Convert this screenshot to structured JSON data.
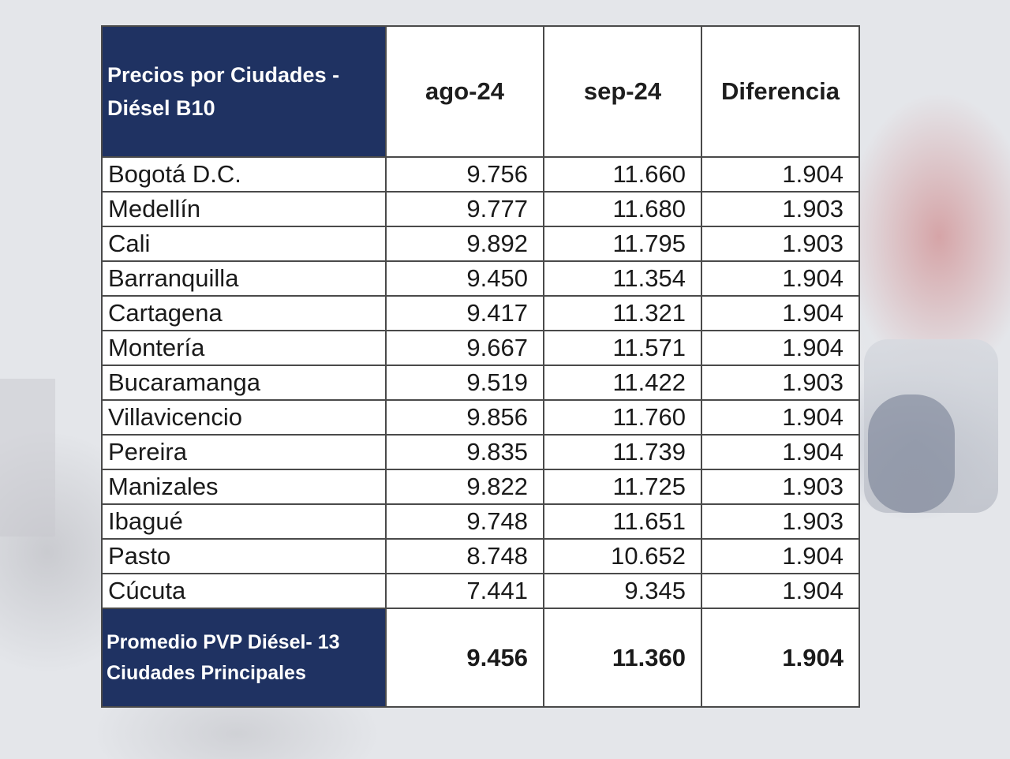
{
  "chart_data": {
    "type": "table",
    "header": {
      "label": "Precios por Ciudades - Diésel B10",
      "columns": [
        "ago-24",
        "sep-24",
        "Diferencia"
      ]
    },
    "rows": [
      {
        "city": "Bogotá D.C.",
        "ago": "9.756",
        "sep": "11.660",
        "diff": "1.904"
      },
      {
        "city": "Medellín",
        "ago": "9.777",
        "sep": "11.680",
        "diff": "1.903"
      },
      {
        "city": "Cali",
        "ago": "9.892",
        "sep": "11.795",
        "diff": "1.903"
      },
      {
        "city": "Barranquilla",
        "ago": "9.450",
        "sep": "11.354",
        "diff": "1.904"
      },
      {
        "city": "Cartagena",
        "ago": "9.417",
        "sep": "11.321",
        "diff": "1.904"
      },
      {
        "city": "Montería",
        "ago": "9.667",
        "sep": "11.571",
        "diff": "1.904"
      },
      {
        "city": "Bucaramanga",
        "ago": "9.519",
        "sep": "11.422",
        "diff": "1.903"
      },
      {
        "city": "Villavicencio",
        "ago": "9.856",
        "sep": "11.760",
        "diff": "1.904"
      },
      {
        "city": "Pereira",
        "ago": "9.835",
        "sep": "11.739",
        "diff": "1.904"
      },
      {
        "city": "Manizales",
        "ago": "9.822",
        "sep": "11.725",
        "diff": "1.903"
      },
      {
        "city": "Ibagué",
        "ago": "9.748",
        "sep": "11.651",
        "diff": "1.903"
      },
      {
        "city": "Pasto",
        "ago": "8.748",
        "sep": "10.652",
        "diff": "1.904"
      },
      {
        "city": "Cúcuta",
        "ago": "7.441",
        "sep": "9.345",
        "diff": "1.904"
      }
    ],
    "footer": {
      "label": "Promedio PVP Diésel- 13 Ciudades Principales",
      "ago": "9.456",
      "sep": "11.360",
      "diff": "1.904"
    },
    "colors": {
      "header_fill": "#1f3262",
      "border": "#4a4a4a"
    }
  }
}
